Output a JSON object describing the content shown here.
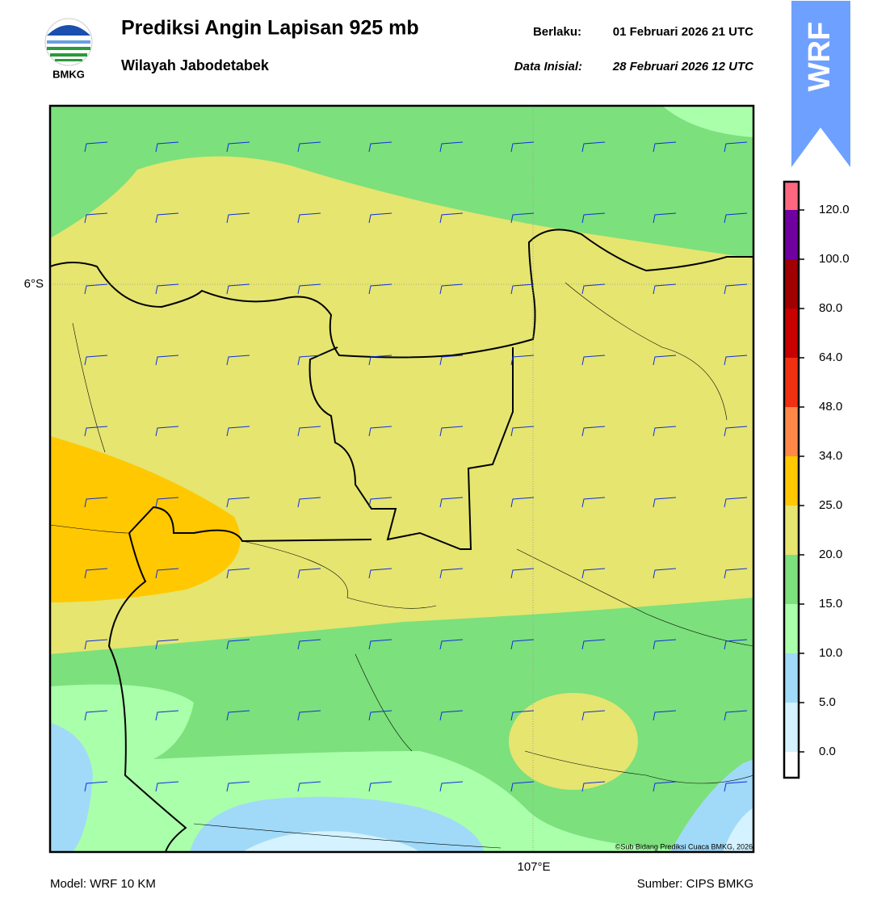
{
  "header": {
    "logo_text": "BMKG",
    "title": "Prediksi Angin Lapisan 925 mb",
    "subtitle": "Wilayah Jabodetabek",
    "valid_label": "Berlaku:",
    "valid_value": "01 Februari 2026 21 UTC",
    "init_label": "Data Inisial:",
    "init_value": "28 Februari 2026 12 UTC",
    "badge": "WRF"
  },
  "map": {
    "lat_label": "6°S",
    "lon_label": "107°E",
    "credit": "©Sub Bidang Prediksi Cuaca BMKG, 2026"
  },
  "colorbar": {
    "colors": [
      "#ffffff",
      "#d4f2ff",
      "#a0daf8",
      "#aaffaa",
      "#7ce07c",
      "#e5e570",
      "#ffc800",
      "#ff8848",
      "#f03010",
      "#c80000",
      "#a00000",
      "#7000a0",
      "#ff6680"
    ],
    "ticks": [
      {
        "value": 0,
        "label": "0.0"
      },
      {
        "value": 5,
        "label": "5.0"
      },
      {
        "value": 10,
        "label": "10.0"
      },
      {
        "value": 15,
        "label": "15.0"
      },
      {
        "value": 20,
        "label": "20.0"
      },
      {
        "value": 25,
        "label": "25.0"
      },
      {
        "value": 34,
        "label": "34.0"
      },
      {
        "value": 48,
        "label": "48.0"
      },
      {
        "value": 64,
        "label": "64.0"
      },
      {
        "value": 80,
        "label": "80.0"
      },
      {
        "value": 100,
        "label": "100.0"
      },
      {
        "value": 120,
        "label": "120.0"
      }
    ]
  },
  "footer": {
    "model": "Model: WRF 10 KM",
    "source": "Sumber: CIPS BMKG"
  }
}
